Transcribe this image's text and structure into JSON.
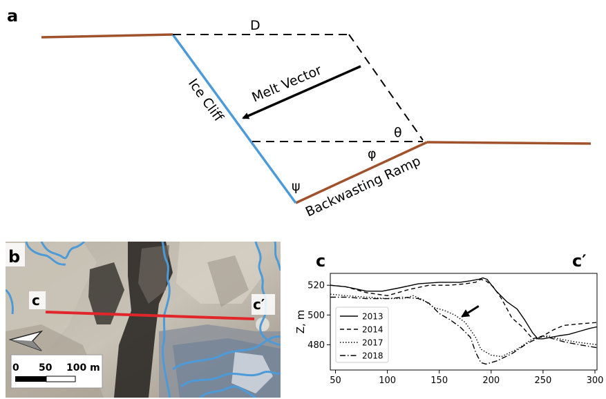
{
  "panel_a": {
    "label": "a",
    "d_label": "D",
    "melt_vector": "Melt Vector",
    "ice_cliff": "Ice Cliff",
    "theta": "θ",
    "phi": "φ",
    "psi": "ψ",
    "ramp": "Backwasting Ramp",
    "colors": {
      "surface": "#a0522d",
      "cliff": "#4d9ad8"
    }
  },
  "panel_b": {
    "label": "b",
    "c_start": "c",
    "c_end": "c′",
    "scale": {
      "t0": "0",
      "t1": "50",
      "t2": "100 m"
    },
    "colors": {
      "outline": "#4d9ad8",
      "profile": "#e0262b"
    }
  },
  "panel_c": {
    "label": "c",
    "label_end": "c′",
    "chart_data": {
      "type": "line",
      "ylabel": "Z, m",
      "xlabel": "",
      "xlim": [
        45,
        302
      ],
      "ylim": [
        463,
        528
      ],
      "xticks": [
        50,
        100,
        150,
        200,
        250,
        300
      ],
      "yticks": [
        480,
        500,
        520
      ],
      "legend": "inside-bottom-left",
      "series": [
        {
          "name": "2013",
          "dash": "solid",
          "x": [
            45,
            60,
            80,
            95,
            110,
            130,
            150,
            170,
            180,
            188,
            192,
            196,
            205,
            215,
            225,
            232,
            240,
            245,
            250,
            258,
            265,
            275,
            285,
            295,
            302
          ],
          "y": [
            520,
            519,
            516,
            516,
            518,
            521,
            522,
            522,
            523,
            524,
            525,
            524,
            516,
            509,
            504,
            497,
            488,
            484,
            484,
            485,
            486,
            487,
            489,
            491,
            492
          ]
        },
        {
          "name": "2014",
          "dash": "dashed",
          "x": [
            45,
            60,
            80,
            100,
            120,
            140,
            160,
            175,
            185,
            190,
            195,
            202,
            210,
            220,
            230,
            240,
            250,
            260,
            270,
            285,
            302
          ],
          "y": [
            520,
            519,
            515,
            513,
            517,
            520,
            520,
            521,
            522,
            524,
            523,
            519,
            511,
            498,
            492,
            484,
            486,
            490,
            493,
            494,
            495
          ]
        },
        {
          "name": "2017",
          "dash": "dotted",
          "x": [
            45,
            60,
            80,
            100,
            115,
            125,
            135,
            145,
            155,
            165,
            175,
            185,
            190,
            200,
            210,
            225,
            240,
            255,
            265,
            280,
            302
          ],
          "y": [
            514,
            513,
            512,
            511,
            511,
            513,
            510,
            505,
            503,
            500,
            495,
            485,
            477,
            473,
            472,
            477,
            484,
            486,
            484,
            482,
            480
          ]
        },
        {
          "name": "2018",
          "dash": "dashdot",
          "x": [
            45,
            60,
            80,
            100,
            115,
            130,
            140,
            150,
            160,
            170,
            180,
            185,
            190,
            195,
            205,
            220,
            235,
            250,
            260,
            270,
            285,
            302
          ],
          "y": [
            512,
            512,
            511,
            511,
            512,
            511,
            508,
            501,
            497,
            492,
            485,
            475,
            468,
            467,
            469,
            474,
            481,
            486,
            484,
            482,
            480,
            478
          ]
        }
      ],
      "arrow": {
        "from": [
          188,
          506
        ],
        "to": [
          172,
          499
        ]
      }
    }
  }
}
